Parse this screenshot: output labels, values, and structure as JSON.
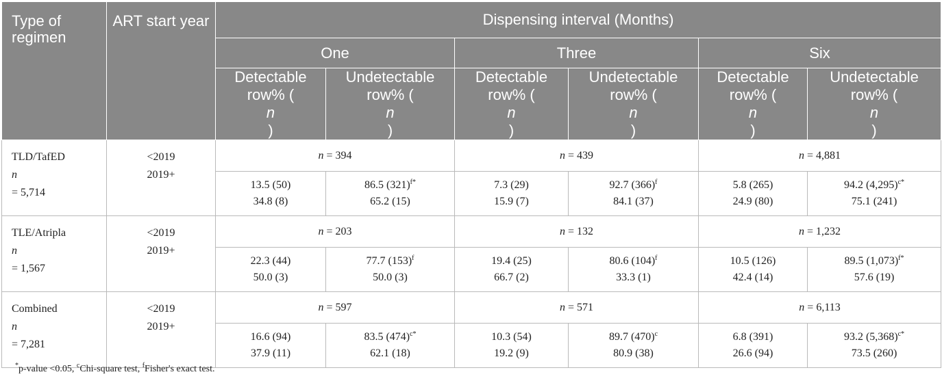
{
  "header": {
    "type_of_regimen": "Type of regimen",
    "art_start_year": "ART start year",
    "dispensing_interval": "Dispensing interval (Months)",
    "groups": [
      "One",
      "Three",
      "Six"
    ],
    "detectable_line1": "Detectable",
    "undetectable_line1": "Undetectable",
    "row_pct": "row% (",
    "n_italic": "n",
    "close_paren": ")"
  },
  "years": [
    "<2019",
    "2019+"
  ],
  "rows": [
    {
      "regimen": "TLD/TafED",
      "total": "= 5,714",
      "group_n": [
        "= 394",
        "= 439",
        "= 4,881"
      ],
      "values": [
        {
          "det": [
            "13.5 (50)",
            "34.8 (8)"
          ],
          "undet": [
            "86.5 (321)",
            "65.2 (15)"
          ],
          "sup": "f*"
        },
        {
          "det": [
            "7.3 (29)",
            "15.9 (7)"
          ],
          "undet": [
            "92.7 (366)",
            "84.1 (37)"
          ],
          "sup": "f"
        },
        {
          "det": [
            "5.8 (265)",
            "24.9 (80)"
          ],
          "undet": [
            "94.2 (4,295)",
            "75.1 (241)"
          ],
          "sup": "c*"
        }
      ]
    },
    {
      "regimen": "TLE/Atripla",
      "total": "= 1,567",
      "group_n": [
        "= 203",
        "= 132",
        "= 1,232"
      ],
      "values": [
        {
          "det": [
            "22.3 (44)",
            "50.0 (3)"
          ],
          "undet": [
            "77.7 (153)",
            "50.0 (3)"
          ],
          "sup": "f"
        },
        {
          "det": [
            "19.4 (25)",
            "66.7 (2)"
          ],
          "undet": [
            "80.6 (104)",
            "33.3 (1)"
          ],
          "sup": "f"
        },
        {
          "det": [
            "10.5 (126)",
            "42.4 (14)"
          ],
          "undet": [
            "89.5 (1,073)",
            "57.6 (19)"
          ],
          "sup": "f*"
        }
      ]
    },
    {
      "regimen": "Combined",
      "total": "= 7,281",
      "group_n": [
        "= 597",
        "= 571",
        "= 6,113"
      ],
      "values": [
        {
          "det": [
            "16.6 (94)",
            "37.9 (11)"
          ],
          "undet": [
            "83.5 (474)",
            "62.1 (18)"
          ],
          "sup": "c*"
        },
        {
          "det": [
            "10.3 (54)",
            "19.2 (9)"
          ],
          "undet": [
            "89.7 (470)",
            "80.9 (38)"
          ],
          "sup": "c"
        },
        {
          "det": [
            "6.8 (391)",
            "26.6 (94)"
          ],
          "undet": [
            "93.2 (5,368)",
            "73.5 (260)"
          ],
          "sup": "c*"
        }
      ]
    }
  ],
  "footnote": {
    "star": "*",
    "p_text": "p-value <0.05, ",
    "c": "c",
    "c_text": "Chi-square test, ",
    "f": "f",
    "f_text": "Fisher's exact test."
  }
}
